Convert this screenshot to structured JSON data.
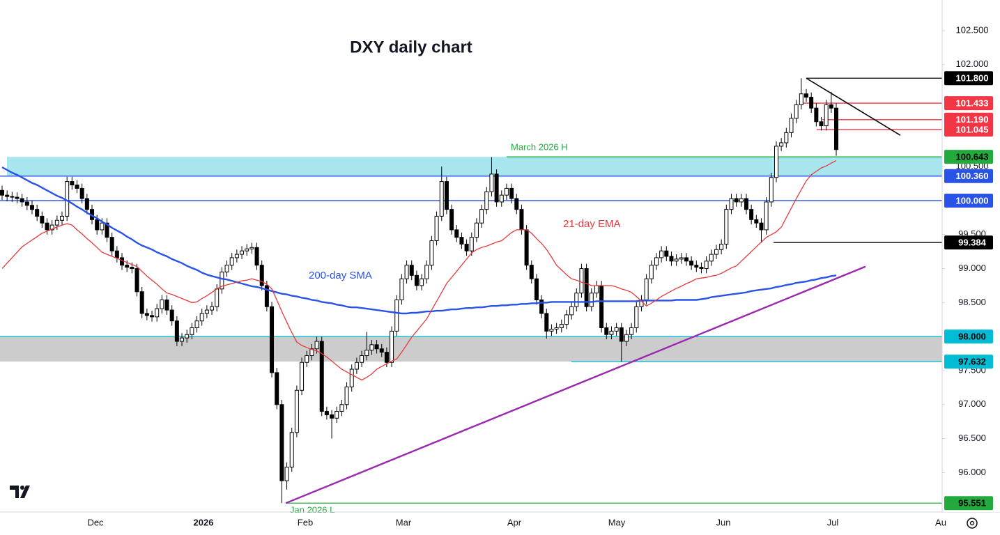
{
  "chart_data": {
    "type": "candlestick",
    "title": "DXY daily chart",
    "ylim": [
      95.42,
      102.95
    ],
    "yticks": [
      {
        "value": 102.5,
        "label": "102.500"
      },
      {
        "value": 102,
        "label": "102.000"
      },
      {
        "value": 100.5,
        "label": "100.500"
      },
      {
        "value": 99.5,
        "label": "99.500"
      },
      {
        "value": 99,
        "label": "99.000"
      },
      {
        "value": 98.5,
        "label": "98.500"
      },
      {
        "value": 97.5,
        "label": "97.500"
      },
      {
        "value": 97,
        "label": "97.000"
      },
      {
        "value": 96.5,
        "label": "96.500"
      },
      {
        "value": 96,
        "label": "96.000"
      }
    ],
    "xticks": [
      "Dec",
      "2026",
      "Feb",
      "Mar",
      "Apr",
      "May",
      "Jun",
      "Jul",
      "Au"
    ],
    "up_color": "#ffffff",
    "down_color": "#000000",
    "open": [
      100.15,
      100.08,
      100.06,
      100.05,
      100.03,
      99.98,
      99.93,
      99.87,
      99.77,
      99.67,
      99.57,
      99.64,
      99.71,
      99.77,
      100.28,
      100.23,
      100.18,
      100.03,
      99.87,
      99.72,
      99.57,
      99.67,
      99.46,
      99.26,
      99.16,
      99.05,
      99.02,
      99.0,
      98.66,
      98.34,
      98.31,
      98.29,
      98.41,
      98.54,
      98.39,
      98.23,
      97.93,
      97.98,
      98.03,
      98.13,
      98.23,
      98.34,
      98.39,
      98.44,
      98.7,
      98.95,
      99.05,
      99.16,
      99.21,
      99.26,
      99.29,
      99.31,
      99.05,
      98.75,
      98.44,
      97.47,
      97.0,
      95.88,
      96.08,
      96.59,
      97.21,
      97.62,
      97.72,
      97.82,
      97.93,
      96.9,
      96.85,
      96.8,
      96.9,
      97.0,
      97.26,
      97.52,
      97.62,
      97.72,
      97.8,
      97.88,
      97.82,
      97.77,
      97.62,
      98.08,
      98.54,
      98.85,
      99.05,
      98.9,
      98.75,
      98.85,
      99.05,
      99.41,
      99.77,
      100.28,
      99.87,
      99.57,
      99.46,
      99.36,
      99.26,
      99.46,
      99.67,
      99.87,
      100.13,
      100.39,
      99.98,
      100.08,
      100.18,
      100.03,
      99.87,
      99.57,
      99.05,
      98.85,
      98.54,
      98.34,
      98.08,
      98.11,
      98.13,
      98.18,
      98.32,
      98.44,
      98.64,
      99.0,
      98.44,
      98.64,
      98.75,
      98.13,
      98.03,
      98.08,
      98.13,
      97.93,
      98.03,
      98.13,
      98.44,
      98.54,
      98.85,
      99.05,
      99.16,
      99.26,
      99.18,
      99.11,
      99.14,
      99.16,
      99.11,
      99.05,
      99.02,
      99.0,
      99.11,
      99.21,
      99.28,
      99.36,
      99.87,
      100.03,
      99.98,
      100.03,
      99.87,
      99.72,
      99.67,
      99.57,
      99.98,
      100.34,
      100.8,
      100.85,
      101.0,
      101.21,
      101.41,
      101.57,
      101.52,
      101.36,
      101.16,
      101.1,
      101.41,
      101.36
    ],
    "high": [
      100.22,
      100.15,
      100.13,
      100.12,
      100.1,
      100.05,
      100.0,
      99.94,
      99.84,
      99.74,
      99.71,
      99.78,
      99.84,
      100.35,
      100.35,
      100.3,
      100.25,
      100.1,
      99.94,
      99.79,
      99.74,
      99.74,
      99.53,
      99.33,
      99.23,
      99.12,
      99.09,
      99.07,
      98.73,
      98.41,
      98.38,
      98.48,
      98.61,
      98.61,
      98.46,
      98.3,
      98.05,
      98.1,
      98.2,
      98.3,
      98.41,
      98.46,
      98.51,
      98.77,
      99.02,
      99.12,
      99.23,
      99.28,
      99.33,
      99.36,
      99.38,
      99.38,
      99.12,
      98.82,
      98.51,
      97.54,
      97.07,
      96.15,
      96.66,
      97.28,
      97.69,
      97.79,
      97.89,
      98.0,
      98.0,
      96.97,
      96.92,
      96.97,
      97.07,
      97.33,
      97.59,
      97.69,
      97.79,
      98.07,
      97.95,
      97.95,
      97.89,
      97.84,
      98.15,
      98.61,
      98.92,
      99.12,
      99.12,
      98.97,
      98.92,
      99.12,
      99.48,
      99.84,
      100.5,
      100.35,
      99.94,
      99.64,
      99.53,
      99.43,
      99.53,
      99.74,
      99.94,
      100.2,
      100.64,
      100.46,
      100.15,
      100.25,
      100.25,
      100.1,
      99.94,
      99.64,
      99.12,
      98.92,
      98.61,
      98.41,
      98.18,
      98.2,
      98.25,
      98.39,
      98.51,
      98.71,
      99.07,
      99.07,
      98.71,
      98.82,
      98.82,
      98.2,
      98.15,
      98.2,
      98.2,
      98.1,
      98.2,
      98.51,
      98.61,
      98.92,
      99.12,
      99.23,
      99.33,
      99.33,
      99.25,
      99.21,
      99.23,
      99.23,
      99.18,
      99.12,
      99.09,
      99.18,
      99.28,
      99.35,
      99.43,
      99.94,
      100.1,
      100.1,
      100.1,
      100.1,
      99.94,
      99.79,
      99.74,
      100.05,
      100.41,
      100.87,
      100.92,
      101.07,
      101.28,
      101.48,
      101.8,
      101.64,
      101.59,
      101.43,
      101.23,
      101.48,
      101.6,
      101.43
    ],
    "low": [
      100.01,
      99.99,
      99.98,
      99.96,
      99.91,
      99.86,
      99.8,
      99.7,
      99.6,
      99.5,
      99.5,
      99.57,
      99.64,
      99.7,
      100.16,
      100.11,
      99.96,
      99.8,
      99.65,
      99.5,
      99.5,
      99.39,
      99.19,
      99.09,
      98.98,
      98.95,
      98.93,
      98.59,
      98.27,
      98.24,
      98.22,
      98.22,
      98.34,
      98.32,
      98.16,
      97.86,
      97.86,
      97.91,
      97.96,
      98.06,
      98.16,
      98.27,
      98.32,
      98.37,
      98.63,
      98.88,
      98.98,
      99.09,
      99.14,
      99.19,
      99.22,
      98.98,
      98.68,
      98.37,
      97.4,
      96.93,
      95.55,
      95.75,
      96.01,
      96.52,
      97.14,
      97.55,
      97.65,
      97.75,
      96.83,
      96.78,
      96.5,
      96.73,
      96.83,
      96.93,
      97.19,
      97.45,
      97.55,
      97.65,
      97.73,
      97.75,
      97.7,
      97.55,
      97.55,
      98.01,
      98.47,
      98.78,
      98.83,
      98.68,
      98.68,
      98.78,
      98.98,
      99.34,
      99.7,
      99.8,
      99.5,
      99.39,
      99.29,
      99.19,
      99.19,
      99.39,
      99.6,
      99.8,
      100.06,
      99.91,
      99.91,
      100.01,
      99.96,
      99.8,
      99.5,
      98.98,
      98.78,
      98.47,
      98.27,
      97.97,
      98.01,
      98.04,
      98.06,
      98.11,
      98.25,
      98.37,
      98.57,
      98.37,
      98.37,
      98.57,
      98.06,
      97.96,
      97.96,
      98.01,
      97.63,
      97.86,
      97.96,
      98.06,
      98.37,
      98.47,
      98.78,
      98.98,
      99.09,
      99.11,
      99.04,
      99.04,
      99.07,
      99.04,
      98.98,
      98.95,
      98.93,
      98.93,
      99.04,
      99.14,
      99.21,
      99.29,
      99.8,
      99.91,
      99.91,
      99.8,
      99.65,
      99.6,
      99.38,
      99.5,
      99.91,
      100.27,
      100.73,
      100.78,
      100.93,
      101.14,
      101.34,
      101.45,
      101.29,
      101.09,
      101.03,
      101.03,
      101.29,
      100.66
    ],
    "close": [
      100.08,
      100.06,
      100.05,
      100.03,
      99.98,
      99.93,
      99.87,
      99.77,
      99.67,
      99.57,
      99.64,
      99.71,
      99.77,
      100.28,
      100.23,
      100.18,
      100.03,
      99.87,
      99.72,
      99.57,
      99.67,
      99.46,
      99.26,
      99.16,
      99.05,
      99.02,
      99.0,
      98.66,
      98.34,
      98.31,
      98.29,
      98.41,
      98.54,
      98.39,
      98.23,
      97.93,
      97.98,
      98.03,
      98.13,
      98.23,
      98.34,
      98.39,
      98.44,
      98.7,
      98.95,
      99.05,
      99.16,
      99.21,
      99.26,
      99.29,
      99.31,
      99.05,
      98.75,
      98.44,
      97.47,
      97.0,
      95.88,
      96.08,
      96.59,
      97.21,
      97.62,
      97.72,
      97.82,
      97.93,
      96.9,
      96.85,
      96.8,
      96.9,
      97.0,
      97.26,
      97.52,
      97.62,
      97.72,
      97.8,
      97.88,
      97.82,
      97.77,
      97.62,
      98.08,
      98.54,
      98.85,
      99.05,
      98.9,
      98.75,
      98.85,
      99.05,
      99.41,
      99.77,
      100.28,
      99.87,
      99.57,
      99.46,
      99.36,
      99.26,
      99.46,
      99.67,
      99.87,
      100.13,
      100.39,
      99.98,
      100.08,
      100.18,
      100.03,
      99.87,
      99.57,
      99.05,
      98.85,
      98.54,
      98.34,
      98.08,
      98.11,
      98.13,
      98.18,
      98.32,
      98.44,
      98.64,
      99.0,
      98.44,
      98.64,
      98.75,
      98.13,
      98.03,
      98.08,
      98.13,
      97.93,
      98.03,
      98.13,
      98.44,
      98.54,
      98.85,
      99.05,
      99.16,
      99.26,
      99.18,
      99.11,
      99.14,
      99.16,
      99.11,
      99.05,
      99.02,
      99.0,
      99.11,
      99.21,
      99.28,
      99.36,
      99.87,
      100.03,
      99.98,
      100.03,
      99.87,
      99.72,
      99.67,
      99.57,
      99.98,
      100.34,
      100.8,
      100.85,
      101.0,
      101.21,
      101.41,
      101.57,
      101.52,
      101.36,
      101.16,
      101.1,
      101.41,
      101.36,
      100.75
    ],
    "lines": [
      {
        "name": "200-day SMA",
        "color": "#2952e8",
        "values": [
          100.49,
          100.45,
          100.41,
          100.38,
          100.34,
          100.3,
          100.26,
          100.23,
          100.19,
          100.15,
          100.11,
          100.07,
          100.04,
          100.0,
          99.96,
          99.91,
          99.87,
          99.82,
          99.78,
          99.74,
          99.69,
          99.65,
          99.6,
          99.56,
          99.52,
          99.47,
          99.43,
          99.38,
          99.34,
          99.31,
          99.28,
          99.24,
          99.21,
          99.18,
          99.14,
          99.11,
          99.08,
          99.04,
          99.01,
          98.98,
          98.94,
          98.91,
          98.89,
          98.87,
          98.85,
          98.84,
          98.82,
          98.8,
          98.78,
          98.76,
          98.74,
          98.73,
          98.71,
          98.69,
          98.67,
          98.65,
          98.63,
          98.62,
          98.6,
          98.59,
          98.57,
          98.56,
          98.54,
          98.53,
          98.51,
          98.5,
          98.49,
          98.47,
          98.46,
          98.44,
          98.43,
          98.43,
          98.42,
          98.41,
          98.4,
          98.39,
          98.38,
          98.37,
          98.36,
          98.35,
          98.34,
          98.34,
          98.35,
          98.35,
          98.36,
          98.37,
          98.37,
          98.38,
          98.38,
          98.39,
          98.4,
          98.4,
          98.41,
          98.42,
          98.42,
          98.43,
          98.43,
          98.44,
          98.45,
          98.45,
          98.46,
          98.46,
          98.47,
          98.47,
          98.48,
          98.48,
          98.49,
          98.49,
          98.5,
          98.5,
          98.51,
          98.51,
          98.51,
          98.51,
          98.51,
          98.51,
          98.51,
          98.51,
          98.51,
          98.52,
          98.52,
          98.52,
          98.52,
          98.52,
          98.52,
          98.52,
          98.52,
          98.52,
          98.53,
          98.53,
          98.53,
          98.53,
          98.53,
          98.53,
          98.53,
          98.54,
          98.54,
          98.54,
          98.54,
          98.54,
          98.55,
          98.56,
          98.58,
          98.59,
          98.6,
          98.61,
          98.62,
          98.63,
          98.64,
          98.65,
          98.67,
          98.68,
          98.69,
          98.7,
          98.71,
          98.73,
          98.74,
          98.76,
          98.77,
          98.79,
          98.8,
          98.81,
          98.83,
          98.84,
          98.86,
          98.87,
          98.89,
          98.9
        ]
      },
      {
        "name": "21-day EMA",
        "color": "#e5393c",
        "values": [
          99.0,
          99.08,
          99.16,
          99.24,
          99.32,
          99.37,
          99.42,
          99.47,
          99.52,
          99.55,
          99.58,
          99.61,
          99.64,
          99.66,
          99.64,
          99.57,
          99.51,
          99.44,
          99.38,
          99.31,
          99.24,
          99.21,
          99.18,
          99.15,
          99.12,
          99.09,
          99.06,
          99.03,
          98.96,
          98.89,
          98.83,
          98.77,
          98.7,
          98.64,
          98.62,
          98.59,
          98.56,
          98.53,
          98.5,
          98.51,
          98.56,
          98.6,
          98.65,
          98.7,
          98.74,
          98.76,
          98.78,
          98.8,
          98.82,
          98.83,
          98.85,
          98.83,
          98.81,
          98.77,
          98.7,
          98.54,
          98.37,
          98.21,
          98.06,
          97.92,
          97.87,
          97.84,
          97.81,
          97.79,
          97.75,
          97.7,
          97.64,
          97.58,
          97.52,
          97.48,
          97.44,
          97.4,
          97.36,
          97.4,
          97.45,
          97.52,
          97.56,
          97.6,
          97.64,
          97.67,
          97.77,
          97.88,
          97.99,
          98.08,
          98.17,
          98.26,
          98.39,
          98.52,
          98.65,
          98.78,
          98.87,
          98.96,
          99.05,
          99.14,
          99.23,
          99.28,
          99.31,
          99.33,
          99.36,
          99.39,
          99.41,
          99.47,
          99.53,
          99.57,
          99.57,
          99.57,
          99.52,
          99.44,
          99.37,
          99.28,
          99.17,
          99.05,
          98.98,
          98.91,
          98.85,
          98.83,
          98.8,
          98.78,
          98.75,
          98.75,
          98.75,
          98.75,
          98.75,
          98.73,
          98.7,
          98.68,
          98.65,
          98.59,
          98.52,
          98.45,
          98.49,
          98.54,
          98.59,
          98.63,
          98.67,
          98.71,
          98.74,
          98.78,
          98.81,
          98.85,
          98.86,
          98.87,
          98.89,
          98.9,
          98.93,
          98.97,
          99.01,
          99.04,
          99.11,
          99.18,
          99.25,
          99.32,
          99.39,
          99.46,
          99.5,
          99.54,
          99.61,
          99.75,
          99.89,
          100.03,
          100.16,
          100.29,
          100.38,
          100.43,
          100.48,
          100.51,
          100.55,
          100.59
        ]
      }
    ],
    "zones": [
      {
        "color": "#a8e6ef",
        "values": [
          100.36,
          100.643
        ]
      },
      {
        "color": "#cccccc",
        "values": [
          97.632,
          98.0
        ]
      }
    ],
    "trendlines": [
      {
        "color": "#000000",
        "values": [
          101.8,
          100.96
        ]
      },
      {
        "color": "#9c27b0",
        "values": [
          95.55,
          99.03
        ]
      }
    ],
    "levels": [
      {
        "value": 101.8,
        "label": "101.800",
        "color": "#000000",
        "text_color": "#ffffff"
      },
      {
        "value": 101.433,
        "label": "101.433",
        "color": "#f23645",
        "text_color": "#ffffff"
      },
      {
        "value": 101.19,
        "label": "101.190",
        "color": "#f23645",
        "text_color": "#ffffff"
      },
      {
        "value": 101.045,
        "label": "101.045",
        "color": "#f23645",
        "text_color": "#ffffff"
      },
      {
        "value": 100.643,
        "label": "100.643",
        "color": "#22ab3c",
        "text_color": "#000000",
        "note": "March 2026 H"
      },
      {
        "value": 100.36,
        "label": "100.360",
        "color": "#2952e8",
        "text_color": "#ffffff"
      },
      {
        "value": 100.0,
        "label": "100.000",
        "color": "#2952e8",
        "text_color": "#ffffff"
      },
      {
        "value": 99.384,
        "label": "99.384",
        "color": "#000000",
        "text_color": "#ffffff"
      },
      {
        "value": 98.0,
        "label": "98.000",
        "color": "#00bcd4",
        "text_color": "#000000"
      },
      {
        "value": 97.632,
        "label": "97.632",
        "color": "#00bcd4",
        "text_color": "#000000"
      },
      {
        "value": 95.551,
        "label": "95.551",
        "color": "#22ab3c",
        "text_color": "#000000",
        "note": "Jan 2026 L"
      }
    ]
  }
}
